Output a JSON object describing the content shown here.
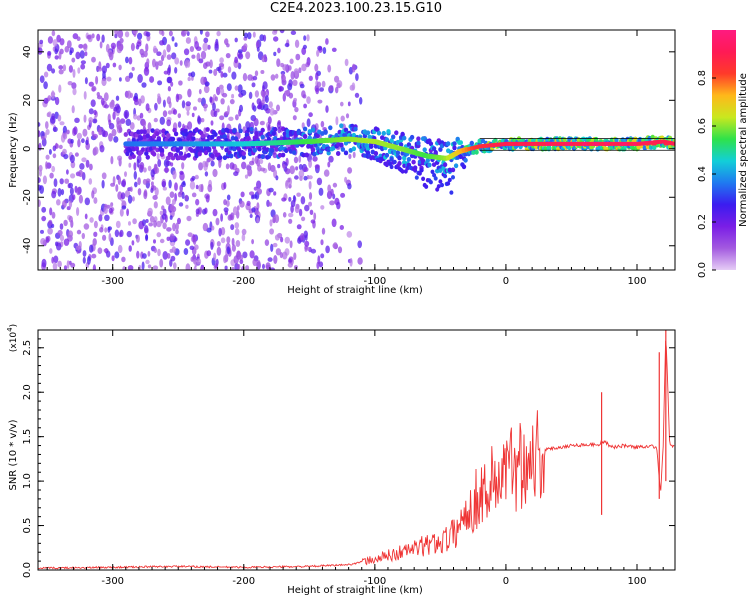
{
  "title": "C2E4.2023.100.23.15.G10",
  "colors": {
    "snr_line": "#ef3535",
    "cmap": [
      "#e6ccf5",
      "#a35ae0",
      "#7a1ee6",
      "#3b1cf0",
      "#1f7af0",
      "#12cfd8",
      "#2fe24a",
      "#c9e81f",
      "#ffb81a",
      "#ff3a2a",
      "#ff1a55",
      "#ff1a80"
    ]
  },
  "chart_data": [
    {
      "type": "heatmap",
      "title": "C2E4.2023.100.23.15.G10",
      "xlabel": "Height of straight line (km)",
      "ylabel": "Frequency (Hz)",
      "xlim": [
        -357,
        129
      ],
      "ylim": [
        -50,
        49
      ],
      "x_ticks": [
        -300,
        -200,
        -100,
        0,
        100
      ],
      "x_tick_labels": [
        "-300",
        "-200",
        "-100",
        "0",
        "100"
      ],
      "y_ticks": [
        -40,
        -20,
        0,
        20,
        40
      ],
      "y_tick_labels": [
        "-40",
        "-20",
        "0",
        "20",
        "40"
      ],
      "colorbar": {
        "label": "Normalized spectral amplitude",
        "range": [
          0,
          1
        ],
        "ticks": [
          0.0,
          0.2,
          0.4,
          0.6,
          0.8
        ],
        "tick_labels": [
          "0.0",
          "0.2",
          "0.4",
          "0.6",
          "0.8"
        ]
      },
      "ridge": {
        "x": [
          -290,
          -250,
          -200,
          -150,
          -120,
          -100,
          -80,
          -60,
          -45,
          -35,
          -20,
          0,
          20,
          60,
          100,
          120,
          129
        ],
        "freq": [
          2,
          2,
          2,
          3,
          4,
          3,
          0,
          -3,
          -4,
          -1,
          1,
          2,
          2,
          2,
          2,
          3,
          2
        ],
        "amplitude": [
          0.35,
          0.38,
          0.45,
          0.55,
          0.6,
          0.62,
          0.6,
          0.55,
          0.6,
          0.7,
          0.85,
          0.9,
          0.92,
          0.95,
          0.95,
          0.9,
          0.9
        ]
      },
      "noise_region": [
        -357,
        -120
      ]
    },
    {
      "type": "line",
      "xlabel": "Height of straight line (km)",
      "ylabel": "SNR (10 * v/v)",
      "y_multiplier": "(x10",
      "y_multiplier_exp": "4",
      "xlim": [
        -357,
        129
      ],
      "ylim": [
        0,
        2.7
      ],
      "x_ticks": [
        -300,
        -200,
        -100,
        0,
        100
      ],
      "x_tick_labels": [
        "-300",
        "-200",
        "-100",
        "0",
        "100"
      ],
      "y_ticks": [
        0,
        0.5,
        1.0,
        1.5,
        2.0,
        2.5
      ],
      "y_tick_labels": [
        "0.0",
        "0.5",
        "1.0",
        "1.5",
        "2.0",
        "2.5"
      ],
      "series": [
        {
          "x": [
            -357,
            -300,
            -250,
            -200,
            -150,
            -120,
            -100,
            -80,
            -60,
            -50,
            -40,
            -30,
            -20,
            -10,
            0,
            10,
            20,
            30,
            40,
            50,
            60,
            70,
            75,
            80,
            90,
            100,
            110,
            115,
            118,
            120,
            122,
            125,
            129
          ],
          "y": [
            0.02,
            0.03,
            0.04,
            0.03,
            0.04,
            0.06,
            0.12,
            0.2,
            0.28,
            0.32,
            0.4,
            0.65,
            0.85,
            1.0,
            1.1,
            1.22,
            1.3,
            1.35,
            1.38,
            1.4,
            1.41,
            1.41,
            1.45,
            1.38,
            1.4,
            1.38,
            1.4,
            1.38,
            0.85,
            1.4,
            2.7,
            1.39,
            1.39
          ]
        }
      ],
      "spikes": [
        {
          "x": 73,
          "ymin": 0.62,
          "ymax": 2.0
        },
        {
          "x": 117,
          "ymin": 0.8,
          "ymax": 2.45
        },
        {
          "x": 122,
          "ymin": 1.0,
          "ymax": 2.7
        }
      ]
    }
  ]
}
